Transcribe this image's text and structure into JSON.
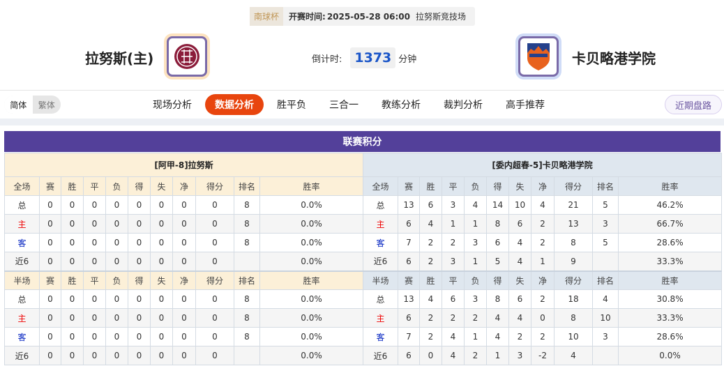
{
  "match": {
    "cup": "南球杯",
    "time_label": "开赛时间:",
    "time": "2025-05-28 06:00",
    "venue": "拉努斯竞技场"
  },
  "home": {
    "name": "拉努斯(主)",
    "logo_color": "#8b1c3a"
  },
  "away": {
    "name": "卡贝略港学院",
    "logo_color": "#e8621e"
  },
  "countdown": {
    "label": "倒计时:",
    "value": "1373",
    "unit": "分钟"
  },
  "lang": {
    "simplified": "简体",
    "traditional": "繁体"
  },
  "nav": [
    "现场分析",
    "数据分析",
    "胜平负",
    "三合一",
    "教练分析",
    "裁判分析",
    "高手推荐"
  ],
  "nav_active": 1,
  "recent_button": "近期盘路",
  "section_title": "联赛积分",
  "tables": [
    {
      "team": "[阿甲-8]拉努斯",
      "full_header": [
        "全场",
        "赛",
        "胜",
        "平",
        "负",
        "得",
        "失",
        "净",
        "得分",
        "排名",
        "胜率"
      ],
      "full": [
        [
          "总",
          "0",
          "0",
          "0",
          "0",
          "0",
          "0",
          "0",
          "0",
          "8",
          "0.0%"
        ],
        [
          "主",
          "0",
          "0",
          "0",
          "0",
          "0",
          "0",
          "0",
          "0",
          "8",
          "0.0%"
        ],
        [
          "客",
          "0",
          "0",
          "0",
          "0",
          "0",
          "0",
          "0",
          "0",
          "8",
          "0.0%"
        ],
        [
          "近6",
          "0",
          "0",
          "0",
          "0",
          "0",
          "0",
          "0",
          "0",
          "",
          "0.0%"
        ]
      ],
      "half_header": [
        "半场",
        "赛",
        "胜",
        "平",
        "负",
        "得",
        "失",
        "净",
        "得分",
        "排名",
        "胜率"
      ],
      "half": [
        [
          "总",
          "0",
          "0",
          "0",
          "0",
          "0",
          "0",
          "0",
          "0",
          "8",
          "0.0%"
        ],
        [
          "主",
          "0",
          "0",
          "0",
          "0",
          "0",
          "0",
          "0",
          "0",
          "8",
          "0.0%"
        ],
        [
          "客",
          "0",
          "0",
          "0",
          "0",
          "0",
          "0",
          "0",
          "0",
          "8",
          "0.0%"
        ],
        [
          "近6",
          "0",
          "0",
          "0",
          "0",
          "0",
          "0",
          "0",
          "0",
          "",
          "0.0%"
        ]
      ]
    },
    {
      "team": "[委内超春-5]卡贝略港学院",
      "full_header": [
        "全场",
        "赛",
        "胜",
        "平",
        "负",
        "得",
        "失",
        "净",
        "得分",
        "排名",
        "胜率"
      ],
      "full": [
        [
          "总",
          "13",
          "6",
          "3",
          "4",
          "14",
          "10",
          "4",
          "21",
          "5",
          "46.2%"
        ],
        [
          "主",
          "6",
          "4",
          "1",
          "1",
          "8",
          "6",
          "2",
          "13",
          "3",
          "66.7%"
        ],
        [
          "客",
          "7",
          "2",
          "2",
          "3",
          "6",
          "4",
          "2",
          "8",
          "5",
          "28.6%"
        ],
        [
          "近6",
          "6",
          "2",
          "3",
          "1",
          "5",
          "4",
          "1",
          "9",
          "",
          "33.3%"
        ]
      ],
      "half_header": [
        "半场",
        "赛",
        "胜",
        "平",
        "负",
        "得",
        "失",
        "净",
        "得分",
        "排名",
        "胜率"
      ],
      "half": [
        [
          "总",
          "13",
          "4",
          "6",
          "3",
          "8",
          "6",
          "2",
          "18",
          "4",
          "30.8%"
        ],
        [
          "主",
          "6",
          "2",
          "2",
          "2",
          "4",
          "4",
          "0",
          "8",
          "10",
          "33.3%"
        ],
        [
          "客",
          "7",
          "2",
          "4",
          "1",
          "4",
          "2",
          "2",
          "10",
          "3",
          "28.6%"
        ],
        [
          "近6",
          "6",
          "0",
          "4",
          "2",
          "1",
          "3",
          "-2",
          "4",
          "",
          "0.0%"
        ]
      ]
    }
  ]
}
